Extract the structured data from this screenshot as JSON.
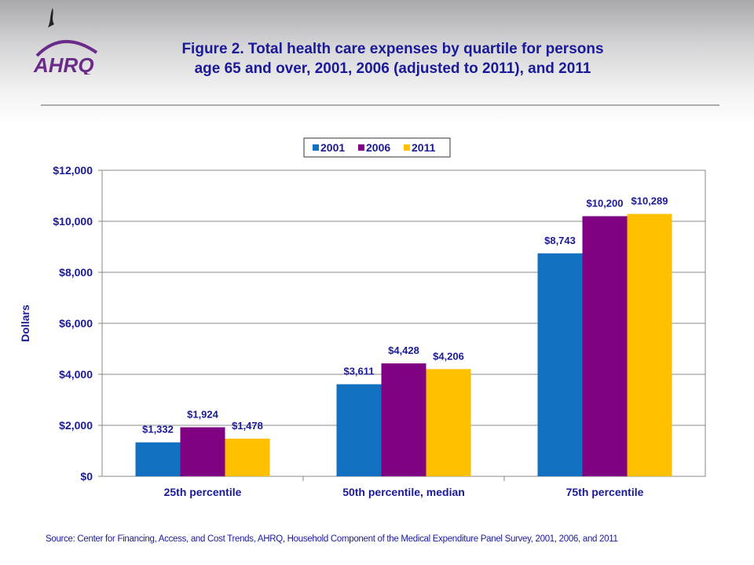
{
  "header": {
    "title_line1": "Figure 2. Total health care expenses by quartile for persons",
    "title_line2": "age 65 and over, 2001, 2006 (adjusted to 2011), and 2011",
    "logo_text": "AHRQ"
  },
  "source": "Source: Center for Financing, Access, and Cost Trends, AHRQ, Household Component of the Medical Expenditure Panel Survey, 2001, 2006, and 2011",
  "chart_data": {
    "type": "bar",
    "title": "",
    "xlabel": "",
    "ylabel": "Dollars",
    "ylim": [
      0,
      12000
    ],
    "yticks": [
      0,
      2000,
      4000,
      6000,
      8000,
      10000,
      12000
    ],
    "ytick_labels": [
      "$0",
      "$2,000",
      "$4,000",
      "$6,000",
      "$8,000",
      "$10,000",
      "$12,000"
    ],
    "grid": true,
    "legend_position": "top",
    "categories": [
      "25th percentile",
      "50th percentile, median",
      "75th percentile"
    ],
    "series": [
      {
        "name": "2001",
        "color": "#1170c0",
        "values": [
          1332,
          3611,
          8743
        ],
        "labels": [
          "$1,332",
          "$3,611",
          "$8,743"
        ]
      },
      {
        "name": "2006",
        "color": "#7f0282",
        "values": [
          1924,
          4428,
          10200
        ],
        "labels": [
          "$1,924",
          "$4,428",
          "$10,200"
        ]
      },
      {
        "name": "2011",
        "color": "#ffc000",
        "values": [
          1478,
          4206,
          10289
        ],
        "labels": [
          "$1,478",
          "$4,206",
          "$10,289"
        ]
      }
    ]
  }
}
